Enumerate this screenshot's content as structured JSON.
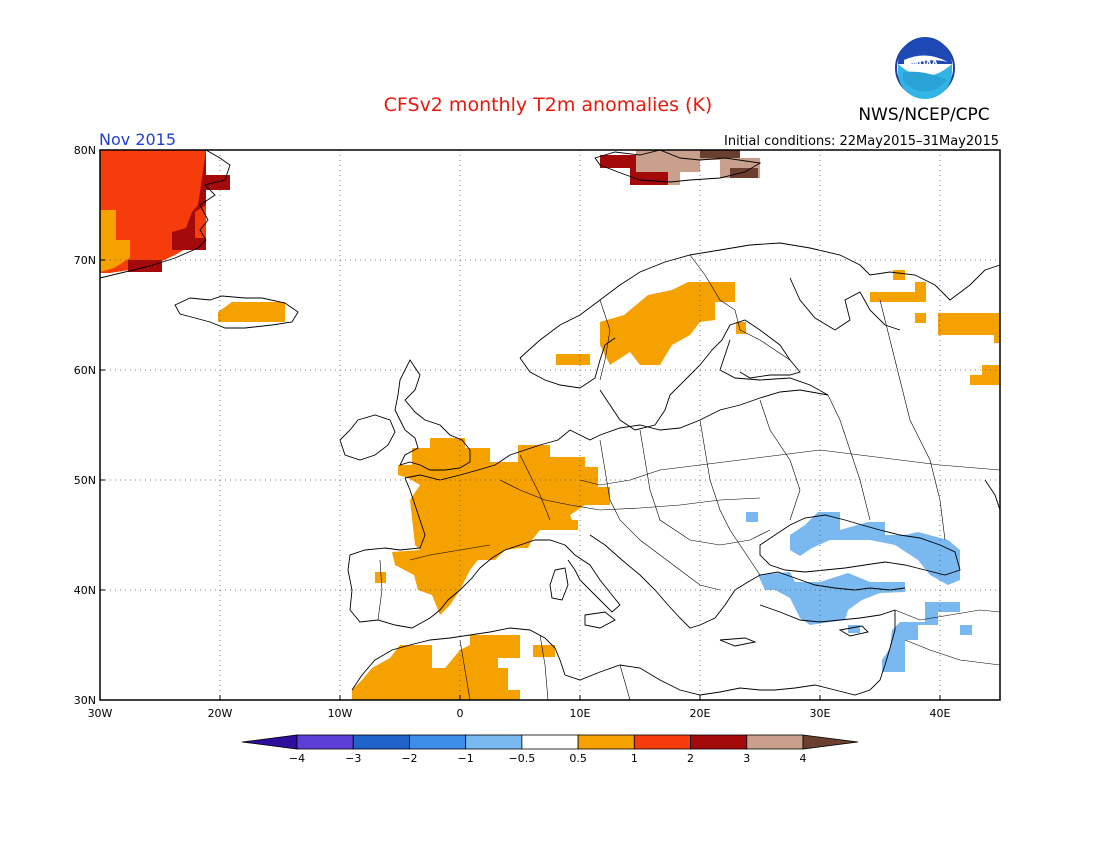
{
  "title": "CFSv2 monthly T2m anomalies (K)",
  "period": "Nov 2015",
  "initial_conditions": "Initial conditions: 22May2015–31May2015",
  "agency": "NWS/NCEP/CPC",
  "logo_text": "NOAA",
  "colors": {
    "title": "#e8190c",
    "period": "#1f3fd6"
  },
  "map": {
    "lon_range": [
      -30,
      45
    ],
    "lat_range": [
      30,
      80
    ],
    "lon_ticks": [
      "30W",
      "20W",
      "10W",
      "0",
      "10E",
      "20E",
      "30E",
      "40E"
    ],
    "lat_ticks": [
      "30N",
      "40N",
      "50N",
      "60N",
      "70N",
      "80N"
    ],
    "grid": "dotted"
  },
  "colorbar": {
    "labels": [
      "−4",
      "−3",
      "−2",
      "−1",
      "−0.5",
      "0.5",
      "1",
      "2",
      "3",
      "4"
    ],
    "colors": [
      "#2d0f9c",
      "#5b3fd6",
      "#1f62c9",
      "#3d8ee8",
      "#7ab8f0",
      "#ffffff",
      "#f5a100",
      "#f53c0a",
      "#a50a0a",
      "#c8a08c",
      "#6b3f2e"
    ]
  }
}
